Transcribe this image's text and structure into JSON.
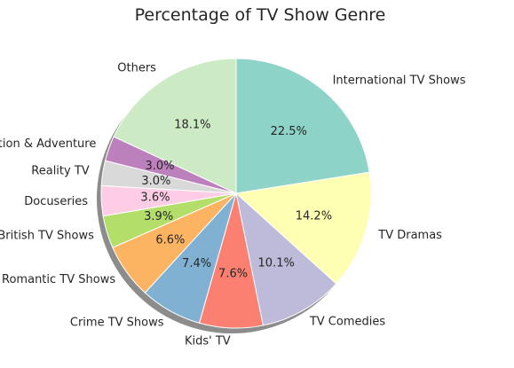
{
  "chart_data": {
    "type": "pie",
    "title": "Percentage of TV Show Genre",
    "start_angle_deg": 90,
    "direction": "clockwise",
    "shadow": true,
    "slices": [
      {
        "label": "International TV Shows",
        "value": 22.5,
        "pct_label": "22.5%",
        "color": "#8dd3c7"
      },
      {
        "label": "TV Dramas",
        "value": 14.2,
        "pct_label": "14.2%",
        "color": "#ffffb3"
      },
      {
        "label": "TV Comedies",
        "value": 10.1,
        "pct_label": "10.1%",
        "color": "#bebada"
      },
      {
        "label": "Kids' TV",
        "value": 7.6,
        "pct_label": "7.6%",
        "color": "#fb8072"
      },
      {
        "label": "Crime TV Shows",
        "value": 7.4,
        "pct_label": "7.4%",
        "color": "#80b1d3"
      },
      {
        "label": "Romantic TV Shows",
        "value": 6.6,
        "pct_label": "6.6%",
        "color": "#fdb462"
      },
      {
        "label": "British TV Shows",
        "value": 3.9,
        "pct_label": "3.9%",
        "color": "#b3de69"
      },
      {
        "label": "Docuseries",
        "value": 3.6,
        "pct_label": "3.6%",
        "color": "#fccde5"
      },
      {
        "label": "Reality TV",
        "value": 3.0,
        "pct_label": "3.0%",
        "color": "#d9d9d9"
      },
      {
        "label": "TV Action & Adventure",
        "value": 3.0,
        "pct_label": "3.0%",
        "color": "#bc80bd"
      },
      {
        "label": "Others",
        "value": 18.1,
        "pct_label": "18.1%",
        "color": "#ccebc5"
      }
    ]
  }
}
